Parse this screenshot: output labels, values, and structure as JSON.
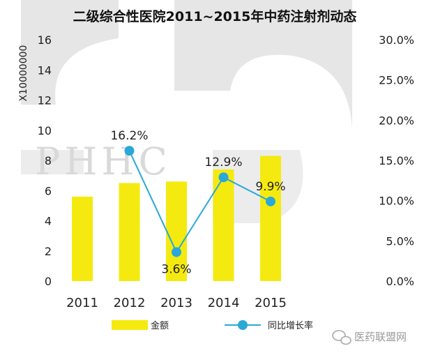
{
  "chart_data": {
    "type": "bar+line",
    "title": "二级综合性医院2011~2015年中药注射剂动态",
    "unit_label": "X10000000",
    "categories": [
      "2011",
      "2012",
      "2013",
      "2014",
      "2015"
    ],
    "series": [
      {
        "name": "金额",
        "type": "bar",
        "axis": "left",
        "color": "#f5ea0f",
        "values": [
          5.6,
          6.5,
          6.6,
          7.4,
          8.3
        ]
      },
      {
        "name": "同比增长率",
        "type": "line",
        "axis": "right",
        "color": "#2aa8d8",
        "values": [
          null,
          16.2,
          3.6,
          12.9,
          9.9
        ],
        "labels": [
          "",
          "16.2%",
          "3.6%",
          "12.9%",
          "9.9%"
        ]
      }
    ],
    "y_left": {
      "min": 0,
      "max": 16,
      "ticks": [
        "0",
        "2",
        "4",
        "6",
        "8",
        "10",
        "12",
        "14",
        "16"
      ]
    },
    "y_right": {
      "min": 0,
      "max": 30,
      "ticks": [
        "0.0%",
        "5.0%",
        "10.0%",
        "15.0%",
        "20.0%",
        "25.0%",
        "30.0%"
      ]
    },
    "grid": false,
    "legend": "bottom"
  },
  "watermark": {
    "text": "PHHC"
  },
  "brand": {
    "text": "医药联盟网",
    "icon": "wechat-icon"
  }
}
